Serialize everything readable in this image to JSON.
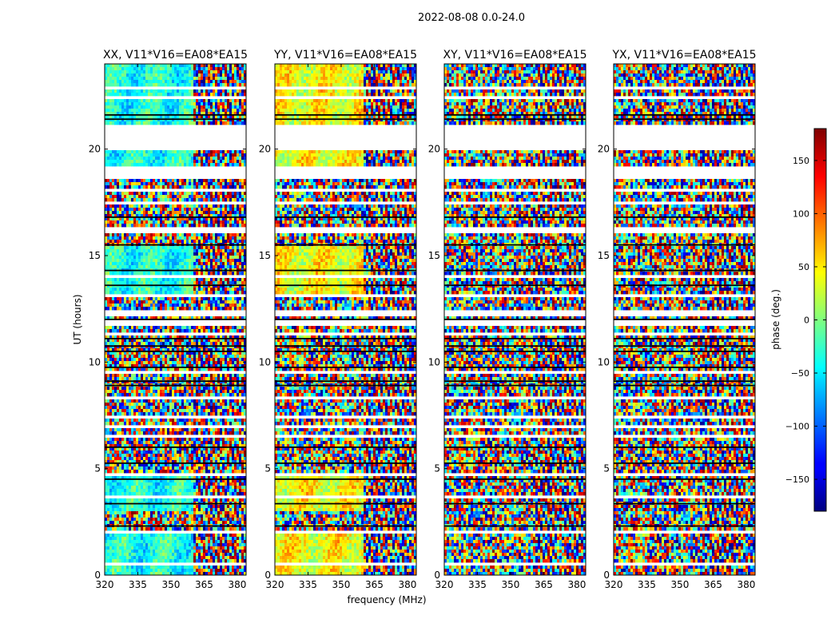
{
  "suptitle": "2022-08-08 0.0-24.0",
  "chart_data": {
    "type": "heatmap",
    "title": "2022-08-08 0.0-24.0",
    "xlabel": "frequency (MHz)",
    "ylabel": "UT (hours)",
    "xlim": [
      320,
      384
    ],
    "ylim": [
      0,
      24
    ],
    "x_ticks": [
      320,
      335,
      350,
      365,
      380
    ],
    "y_ticks": [
      0,
      5,
      10,
      15,
      20
    ],
    "panels": [
      {
        "title": "XX, V11*V16=EA08*EA15",
        "pol": "XX",
        "coherent": true
      },
      {
        "title": "YY, V11*V16=EA08*EA15",
        "pol": "YY",
        "coherent": true
      },
      {
        "title": "XY, V11*V16=EA08*EA15",
        "pol": "XY",
        "coherent": false
      },
      {
        "title": "YX, V11*V16=EA08*EA15",
        "pol": "YX",
        "coherent": false
      }
    ],
    "colorbar": {
      "label": "phase (deg.)",
      "range": [
        -180,
        180
      ],
      "ticks": [
        -150,
        -100,
        -50,
        0,
        50,
        100,
        150
      ],
      "tick_labels": [
        "−150",
        "−100",
        "−50",
        "0",
        "50",
        "100",
        "150"
      ],
      "colormap": "jet"
    },
    "blank_ut_intervals": [
      [
        0.45,
        0.55
      ],
      [
        1.95,
        2.1
      ],
      [
        3.55,
        3.7
      ],
      [
        4.6,
        4.75
      ],
      [
        5.5,
        5.6
      ],
      [
        6.4,
        6.55
      ],
      [
        6.9,
        7.05
      ],
      [
        7.35,
        7.5
      ],
      [
        8.3,
        8.4
      ],
      [
        9.45,
        9.55
      ],
      [
        11.25,
        11.35
      ],
      [
        11.65,
        11.95
      ],
      [
        12.2,
        12.45
      ],
      [
        13.05,
        13.15
      ],
      [
        13.95,
        14.05
      ],
      [
        15.1,
        15.2
      ],
      [
        16.1,
        16.35
      ],
      [
        17.4,
        17.6
      ],
      [
        17.95,
        18.1
      ],
      [
        18.6,
        19.25
      ],
      [
        19.95,
        20.05
      ],
      [
        20.1,
        21.2
      ],
      [
        21.85,
        21.95
      ],
      [
        22.3,
        22.45
      ],
      [
        22.8,
        22.95
      ]
    ],
    "dark_ut_lines": [
      2.3,
      3.35,
      4.5,
      5.25,
      6.0,
      8.9,
      9.1,
      9.75,
      10.5,
      10.75,
      11.1,
      12.0,
      13.6,
      14.3,
      15.5,
      16.8,
      21.4,
      21.6
    ]
  }
}
